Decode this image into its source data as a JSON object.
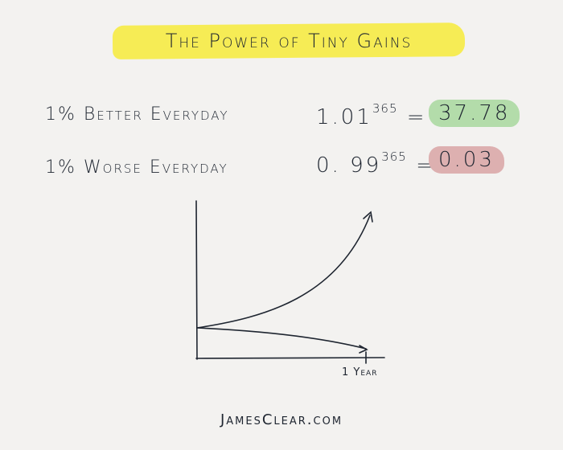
{
  "title": "The Power of Tiny Gains",
  "rows": [
    {
      "label": "1% Better Everyday",
      "base": "1.01",
      "exponent": "365",
      "equals": "=",
      "result": "37.78",
      "result_color": "#b3dcaa"
    },
    {
      "label": "1% Worse Everyday",
      "base": "0. 99",
      "exponent": "365",
      "equals": "=",
      "result": "0.03",
      "result_color": "#ddb0b0"
    }
  ],
  "graph": {
    "x_tick_label": "1 Year"
  },
  "colors": {
    "highlight": "#f6ec55",
    "ink": "#1e2530",
    "background": "#f3f2f0"
  },
  "footer": "JamesClear.com"
}
